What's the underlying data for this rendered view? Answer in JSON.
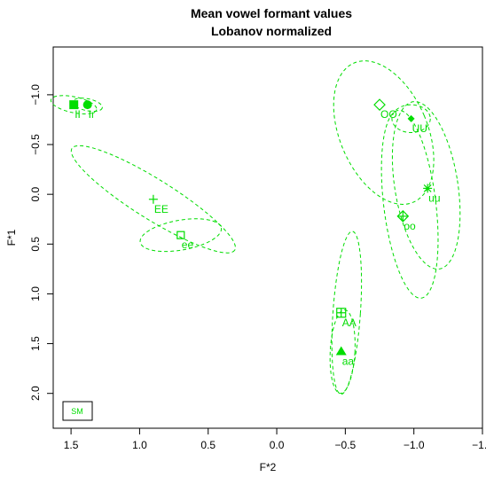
{
  "chart_data": {
    "type": "scatter",
    "title_lines": [
      "Mean vowel formant values",
      "Lobanov normalized"
    ],
    "xlabel": "F*2",
    "ylabel": "F*1",
    "x_reversed": true,
    "y_reversed": true,
    "xlim": [
      1.63,
      -1.5
    ],
    "ylim": [
      -1.48,
      2.35
    ],
    "x_ticks": [
      {
        "value": 1.5,
        "label": "1.5"
      },
      {
        "value": 1.0,
        "label": "1.0"
      },
      {
        "value": 0.5,
        "label": "0.5"
      },
      {
        "value": 0.0,
        "label": "0.0"
      },
      {
        "value": -0.5,
        "label": "−0.5"
      },
      {
        "value": -1.0,
        "label": "−1.0"
      },
      {
        "value": -1.5,
        "label": "−1.5"
      }
    ],
    "y_ticks": [
      {
        "value": -1.0,
        "label": "−1.0"
      },
      {
        "value": -0.5,
        "label": "−0.5"
      },
      {
        "value": 0.0,
        "label": "0.0"
      },
      {
        "value": 0.5,
        "label": "0.5"
      },
      {
        "value": 1.0,
        "label": "1.0"
      },
      {
        "value": 1.5,
        "label": "1.5"
      },
      {
        "value": 2.0,
        "label": "2.0"
      }
    ],
    "color": "#00dd00",
    "grid": false,
    "legend": {
      "position": "bottom-left",
      "entries": [
        "SM"
      ]
    },
    "points": [
      {
        "label": "II",
        "x": 1.48,
        "y": -0.9,
        "symbol": "filled-square"
      },
      {
        "label": "Ir",
        "x": 1.38,
        "y": -0.9,
        "symbol": "filled-circle"
      },
      {
        "label": "EE",
        "x": 0.9,
        "y": 0.05,
        "symbol": "plus"
      },
      {
        "label": "ee",
        "x": 0.7,
        "y": 0.41,
        "symbol": "open-square"
      },
      {
        "label": "AA",
        "x": -0.47,
        "y": 1.19,
        "symbol": "boxed-plus"
      },
      {
        "label": "aa",
        "x": -0.47,
        "y": 1.58,
        "symbol": "filled-triangle"
      },
      {
        "label": "OO",
        "x": -0.75,
        "y": -0.9,
        "symbol": "open-diamond"
      },
      {
        "label": "UU",
        "x": -0.98,
        "y": -0.76,
        "symbol": "filled-diamond"
      },
      {
        "label": "oo",
        "x": -0.92,
        "y": 0.22,
        "symbol": "diamond-plus"
      },
      {
        "label": "uu",
        "x": -1.1,
        "y": -0.06,
        "symbol": "asterisk"
      }
    ],
    "ellipses": [
      {
        "vowel": "II",
        "cx": 1.48,
        "cy": -0.9,
        "rx": 0.17,
        "ry": 0.08,
        "angle": 12
      },
      {
        "vowel": "Ir",
        "cx": 1.38,
        "cy": -0.9,
        "rx": 0.11,
        "ry": 0.06,
        "angle": 12
      },
      {
        "vowel": "EE",
        "cx": 0.9,
        "cy": 0.05,
        "rx": 0.7,
        "ry": 0.2,
        "angle": 32
      },
      {
        "vowel": "ee",
        "cx": 0.7,
        "cy": 0.41,
        "rx": 0.3,
        "ry": 0.15,
        "angle": -10
      },
      {
        "vowel": "AA",
        "cx": -0.51,
        "cy": 1.19,
        "rx": 0.1,
        "ry": 0.82,
        "angle": 4
      },
      {
        "vowel": "aa",
        "cx": -0.48,
        "cy": 1.58,
        "rx": 0.09,
        "ry": 0.42,
        "angle": 3
      },
      {
        "vowel": "OO",
        "cx": -0.78,
        "cy": -0.62,
        "rx": 0.32,
        "ry": 0.76,
        "angle": -23
      },
      {
        "vowel": "UU",
        "cx": -0.98,
        "cy": -0.76,
        "rx": 0.14,
        "ry": 0.14,
        "angle": 0
      },
      {
        "vowel": "oo",
        "cx": -0.97,
        "cy": 0.1,
        "rx": 0.19,
        "ry": 0.95,
        "angle": -7
      },
      {
        "vowel": "uu",
        "cx": -1.09,
        "cy": -0.09,
        "rx": 0.23,
        "ry": 0.85,
        "angle": -9
      }
    ]
  }
}
